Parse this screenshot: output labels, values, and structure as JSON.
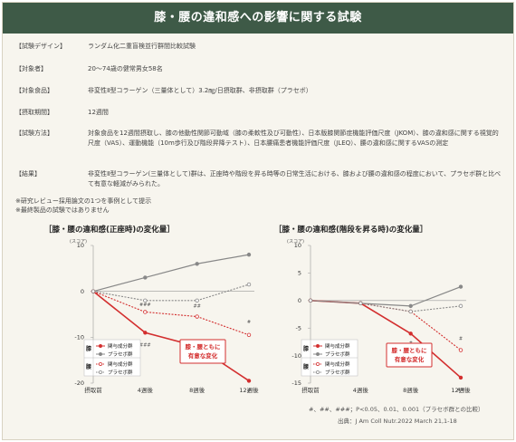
{
  "header": {
    "title": "膝・腰の違和感への影響に関する試験"
  },
  "info_rows": [
    {
      "label": "【試験デザイン】",
      "value": "ランダム化二重盲検並行群間比較試験"
    },
    {
      "label": "【対象者】",
      "value": "20〜74歳の健常男女58名"
    },
    {
      "label": "【対象食品】",
      "value": "非変性Ⅱ型コラーゲン（三量体として）3.2㎎/日摂取群、非摂取群（プラセボ）"
    },
    {
      "label": "【摂取期間】",
      "value": "12週間"
    },
    {
      "label": "【試験方法】",
      "value": "対象食品を12週間摂取し、膝の他動性関節可動域（膝の柔軟性及び可動性）、日本版膝関節症機能評価尺度（JKOM）、膝の違和感に関する視覚的尺度（VAS）、運動機能（10m歩行及び階段昇降テスト）、日本腰痛患者機能評価尺度（JLEQ）、腰の違和感に関するVASの測定"
    },
    {
      "label": "【結果】",
      "value": "非変性Ⅱ型コラーゲン(三量体として)群は、正座時や階段を昇る時等の日常生活における、膝および腰の違和感の程度において、プラセボ群と比べて有意な軽減がみられた。"
    }
  ],
  "notes": [
    "※研究レビュー採用論文の1つを事例として提示",
    "※最終製品の試験ではありません"
  ],
  "chart_data": [
    {
      "type": "line",
      "title": "［膝・腰の違和感(正座時)の変化量］",
      "ylabel": "(スコア)",
      "categories": [
        "摂取前",
        "4週後",
        "8週後",
        "12週後"
      ],
      "ylim": [
        -20,
        10
      ],
      "yticks": [
        10,
        0,
        -10,
        -20
      ],
      "series": [
        {
          "name": "関与成分群",
          "joint": "膝",
          "values": [
            0,
            -9,
            -12,
            -19.5
          ],
          "color": "#d32f2f",
          "style": "solid",
          "marker": "filled"
        },
        {
          "name": "プラセボ群",
          "joint": "膝",
          "values": [
            0,
            3,
            6,
            8
          ],
          "color": "#888888",
          "style": "solid",
          "marker": "filled"
        },
        {
          "name": "関与成分群",
          "joint": "腰",
          "values": [
            0,
            -4.5,
            -5.5,
            -9.5
          ],
          "color": "#d32f2f",
          "style": "dotted",
          "marker": "open"
        },
        {
          "name": "プラセボ群",
          "joint": "腰",
          "values": [
            0,
            -2,
            -2,
            1.5
          ],
          "color": "#888888",
          "style": "dotted",
          "marker": "open"
        }
      ],
      "annotations": [
        "###",
        "##",
        "#",
        "###",
        "##",
        "#"
      ],
      "callout": [
        "膝・腰ともに",
        "有意な変化"
      ]
    },
    {
      "type": "line",
      "title": "［膝・腰の違和感(階段を昇る時)の変化量］",
      "ylabel": "(スコア)",
      "categories": [
        "摂取前",
        "4週後",
        "8週後",
        "12週後"
      ],
      "ylim": [
        -15,
        10
      ],
      "yticks": [
        10,
        5,
        0,
        -5,
        -10,
        -15
      ],
      "series": [
        {
          "name": "関与成分群",
          "joint": "膝",
          "values": [
            0,
            -0.5,
            -6,
            -14
          ],
          "color": "#d32f2f",
          "style": "solid",
          "marker": "filled"
        },
        {
          "name": "プラセボ群",
          "joint": "膝",
          "values": [
            0,
            -0.5,
            -1,
            2.5
          ],
          "color": "#888888",
          "style": "solid",
          "marker": "filled"
        },
        {
          "name": "関与成分群",
          "joint": "腰",
          "values": [
            0,
            -0.5,
            -2,
            -9
          ],
          "color": "#d32f2f",
          "style": "dotted",
          "marker": "open"
        },
        {
          "name": "プラセボ群",
          "joint": "腰",
          "values": [
            0,
            -0.5,
            -2,
            -1
          ],
          "color": "#888888",
          "style": "dotted",
          "marker": "open"
        }
      ],
      "annotations": [
        "#",
        "##",
        "#"
      ],
      "callout": [
        "膝・腰ともに",
        "有意な変化"
      ]
    }
  ],
  "legend": {
    "joint_knee": "膝",
    "joint_back": "腰",
    "active": "関与成分群",
    "placebo": "プラセボ群"
  },
  "footnote": "#、##、###；P<0.05、0.01、0.001（プラセボ群との比較）",
  "source": "出典：J Am Coll Nutr.2022 March 21,1-18"
}
